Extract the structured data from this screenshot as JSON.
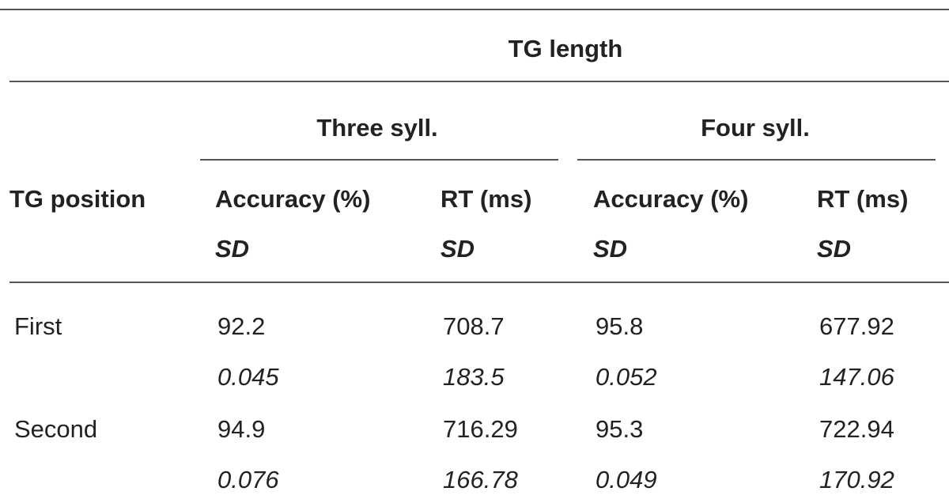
{
  "header": {
    "title": "TG length",
    "groups": [
      "Three syll.",
      "Four syll."
    ],
    "row_header": "TG position",
    "columns": [
      {
        "label": "Accuracy (%)",
        "sub": "SD"
      },
      {
        "label": "RT (ms)",
        "sub": "SD"
      },
      {
        "label": "Accuracy (%)",
        "sub": "SD"
      },
      {
        "label": "RT (ms)",
        "sub": "SD"
      }
    ]
  },
  "rows": [
    {
      "label": "First",
      "means": [
        "92.2",
        "708.7",
        "95.8",
        "677.92"
      ],
      "sds": [
        "0.045",
        "183.5",
        "0.052",
        "147.06"
      ]
    },
    {
      "label": "Second",
      "means": [
        "94.9",
        "716.29",
        "95.3",
        "722.94"
      ],
      "sds": [
        "0.076",
        "166.78",
        "0.049",
        "170.92"
      ]
    }
  ]
}
